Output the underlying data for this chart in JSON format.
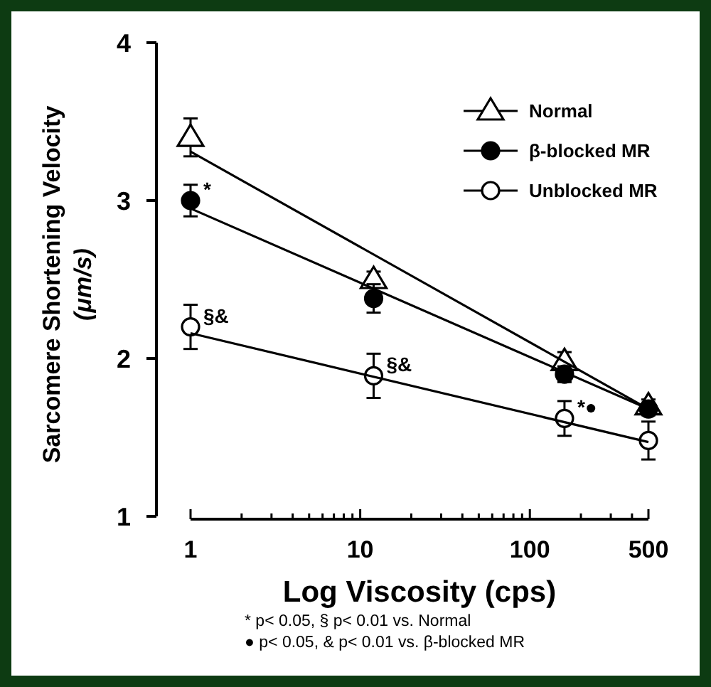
{
  "chart_data": {
    "type": "scatter",
    "xlabel": "Log Viscosity (cps)",
    "ylabel": "Sarcomere Shortening Velocity (μm/s)",
    "log": "x",
    "xlim": [
      1,
      500
    ],
    "ylim": [
      1,
      4
    ],
    "xticks": [
      1,
      {
        "value": 2,
        "label": null
      },
      {
        "value": 3,
        "label": null
      },
      {
        "value": 4,
        "label": null
      },
      {
        "value": 5,
        "label": null
      },
      {
        "value": 6,
        "label": null
      },
      {
        "value": 7,
        "label": null
      },
      {
        "value": 8,
        "label": null
      },
      {
        "value": 9,
        "label": null
      },
      10,
      {
        "value": 20,
        "label": null
      },
      {
        "value": 30,
        "label": null
      },
      {
        "value": 40,
        "label": null
      },
      {
        "value": 50,
        "label": null
      },
      {
        "value": 60,
        "label": null
      },
      {
        "value": 70,
        "label": null
      },
      {
        "value": 80,
        "label": null
      },
      {
        "value": 90,
        "label": null
      },
      100,
      {
        "value": 200,
        "label": null
      },
      {
        "value": 300,
        "label": null
      },
      {
        "value": 400,
        "label": null
      },
      500
    ],
    "yticks": [
      1,
      2,
      3,
      4
    ],
    "grid": false,
    "legend": "top right",
    "series": [
      {
        "name": "Normal",
        "marker": "triangle",
        "color": "#ffffff",
        "x": [
          1,
          12,
          160,
          500
        ],
        "values": [
          3.4,
          2.5,
          1.98,
          1.7
        ],
        "errors": [
          0.12,
          0.05,
          0.06,
          0.04
        ]
      },
      {
        "name": "β-blocked MR",
        "marker": "circle",
        "color": "#000000",
        "x": [
          1,
          12,
          160,
          500
        ],
        "values": [
          3.0,
          2.38,
          1.9,
          1.68
        ],
        "errors": [
          0.1,
          0.09,
          0.05,
          0.04
        ]
      },
      {
        "name": "Unblocked MR",
        "marker": "circle",
        "color": "#ffffff",
        "x": [
          1,
          12,
          160,
          500
        ],
        "values": [
          2.2,
          1.89,
          1.62,
          1.48
        ],
        "errors": [
          0.14,
          0.14,
          0.11,
          0.12
        ]
      },
      {
        "type": "line",
        "color": "#000000",
        "x": [
          1,
          500
        ],
        "values": [
          3.31,
          1.68
        ]
      },
      {
        "type": "line",
        "color": "#000000",
        "x": [
          1,
          500
        ],
        "values": [
          2.95,
          1.68
        ]
      },
      {
        "type": "line",
        "color": "#000000",
        "x": [
          1,
          500
        ],
        "values": [
          2.16,
          1.47
        ]
      }
    ],
    "annotations": [
      {
        "text": "*",
        "x": 1,
        "y": 3.0
      },
      {
        "text": "§&",
        "x": 1,
        "y": 2.2
      },
      {
        "text": "§&",
        "x": 12,
        "y": 1.89
      },
      {
        "text": "*●",
        "x": 160,
        "y": 1.62
      },
      "* p< 0.05,  § p< 0.01 vs. Normal",
      "● p< 0.05,  & p< 0.01 vs. β-blocked MR"
    ]
  }
}
